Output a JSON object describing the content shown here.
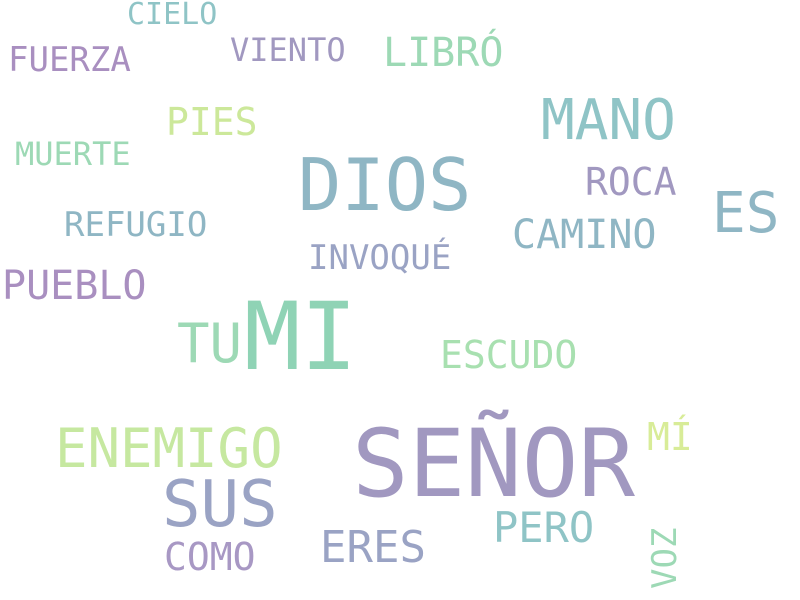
{
  "words": [
    {
      "id": "senor",
      "text": "SEÑOR",
      "color": "#a198c0"
    },
    {
      "id": "mi",
      "text": "MI",
      "color": "#8fd3b5"
    },
    {
      "id": "dios",
      "text": "DIOS",
      "color": "#8fb6c4"
    },
    {
      "id": "sus",
      "text": "SUS",
      "color": "#9aa3c4"
    },
    {
      "id": "mano",
      "text": "MANO",
      "color": "#8fc4c6"
    },
    {
      "id": "es",
      "text": "ES",
      "color": "#8fb6c4"
    },
    {
      "id": "tu",
      "text": "TU",
      "color": "#9dd9b5"
    },
    {
      "id": "enemigo",
      "text": "ENEMIGO",
      "color": "#c6e8a0"
    },
    {
      "id": "eres",
      "text": "ERES",
      "color": "#9aa3c4"
    },
    {
      "id": "pero",
      "text": "PERO",
      "color": "#8fc4c6"
    },
    {
      "id": "libro",
      "text": "LIBRÓ",
      "color": "#9dd9b5"
    },
    {
      "id": "camino",
      "text": "CAMINO",
      "color": "#8fb6c4"
    },
    {
      "id": "pueblo",
      "text": "PUEBLO",
      "color": "#a98fc0"
    },
    {
      "id": "roca",
      "text": "ROCA",
      "color": "#a198c0"
    },
    {
      "id": "pies",
      "text": "PIES",
      "color": "#cce89a"
    },
    {
      "id": "escudo",
      "text": "ESCUDO",
      "color": "#a8e0b0"
    },
    {
      "id": "como",
      "text": "COMO",
      "color": "#a898c4"
    },
    {
      "id": "fuerza",
      "text": "FUERZA",
      "color": "#a98fc0"
    },
    {
      "id": "refugio",
      "text": "REFUGIO",
      "color": "#8fb6c4"
    },
    {
      "id": "invoque",
      "text": "INVOQUÉ",
      "color": "#9aa3c4"
    },
    {
      "id": "viento",
      "text": "VIENTO",
      "color": "#a198c0"
    },
    {
      "id": "cielo",
      "text": "CIELO",
      "color": "#8fc4c6"
    },
    {
      "id": "muerte",
      "text": "MUERTE",
      "color": "#9dd9b5"
    },
    {
      "id": "mi2",
      "text": "MÍ",
      "color": "#d8ec98"
    },
    {
      "id": "voz",
      "text": "VOZ",
      "color": "#9dd9b5"
    }
  ]
}
